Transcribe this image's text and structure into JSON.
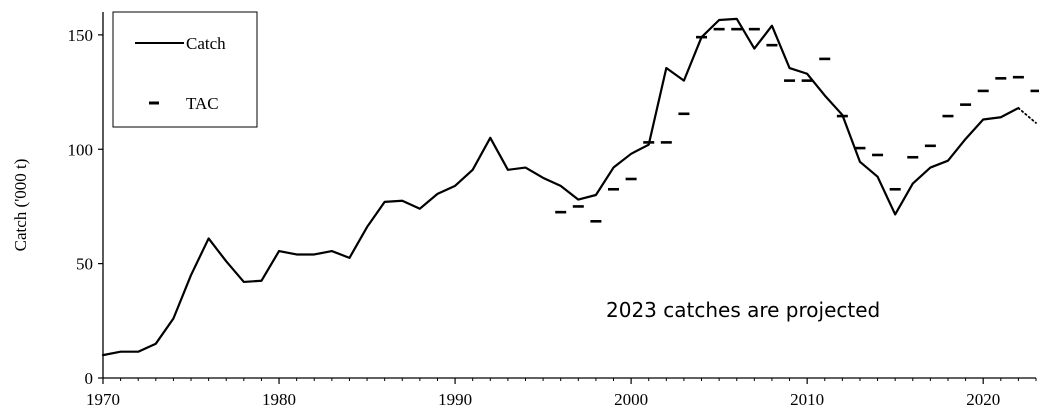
{
  "chart_data": {
    "type": "line",
    "ylabel": "Catch ('000 t)",
    "xlim": [
      1970,
      2023
    ],
    "ylim": [
      0,
      160
    ],
    "x_ticks": [
      1970,
      1980,
      1990,
      2000,
      2010,
      2020
    ],
    "x_tick_labels": [
      "1970",
      "1980",
      "1990",
      "2000",
      "2010",
      "2020"
    ],
    "y_ticks": [
      0,
      50,
      100,
      150
    ],
    "y_tick_labels": [
      "0",
      "50",
      "100",
      "150"
    ],
    "grid": false,
    "legend": {
      "placement": "top-left",
      "entries": [
        "Catch",
        "TAC"
      ]
    },
    "annotation": "2023 catches are projected",
    "series": [
      {
        "name": "Catch",
        "style": "solid-line",
        "color": "#000000",
        "x": [
          1970,
          1971,
          1972,
          1973,
          1974,
          1975,
          1976,
          1977,
          1978,
          1979,
          1980,
          1981,
          1982,
          1983,
          1984,
          1985,
          1986,
          1987,
          1988,
          1989,
          1990,
          1991,
          1992,
          1993,
          1994,
          1995,
          1996,
          1997,
          1998,
          1999,
          2000,
          2001,
          2002,
          2003,
          2004,
          2005,
          2006,
          2007,
          2008,
          2009,
          2010,
          2011,
          2012,
          2013,
          2014,
          2015,
          2016,
          2017,
          2018,
          2019,
          2020,
          2021,
          2022
        ],
        "values": [
          10,
          11.5,
          11.5,
          15,
          26,
          45,
          61,
          51,
          42,
          42.5,
          55.5,
          54,
          54,
          55.5,
          52.5,
          66,
          77,
          77.5,
          74,
          80.5,
          84,
          91,
          105,
          91,
          92,
          87.5,
          84,
          78,
          80,
          92,
          98,
          102,
          135.5,
          130,
          149,
          156.5,
          157,
          144,
          154,
          135.5,
          133,
          123.5,
          115,
          94.5,
          88,
          71.5,
          85,
          92,
          95,
          104.5,
          113,
          114,
          118
        ]
      },
      {
        "name": "Catch (2023 projected)",
        "style": "dotted-line",
        "color": "#000000",
        "x": [
          2022,
          2023
        ],
        "values": [
          118,
          111.5
        ]
      },
      {
        "name": "TAC",
        "style": "dash-marker",
        "color": "#000000",
        "x": [
          1996,
          1997,
          1998,
          1999,
          2000,
          2001,
          2002,
          2003,
          2004,
          2005,
          2006,
          2007,
          2008,
          2009,
          2010,
          2011,
          2012,
          2013,
          2014,
          2015,
          2016,
          2017,
          2018,
          2019,
          2020,
          2021,
          2022,
          2023
        ],
        "values": [
          72.5,
          75,
          68.5,
          82.5,
          87,
          103,
          103,
          115.5,
          149,
          152.5,
          152.5,
          152.5,
          145.5,
          130,
          130,
          139.5,
          114.5,
          100.5,
          97.5,
          82.5,
          96.5,
          101.5,
          114.5,
          119.5,
          125.5,
          131,
          131.5,
          125.5
        ]
      }
    ]
  }
}
